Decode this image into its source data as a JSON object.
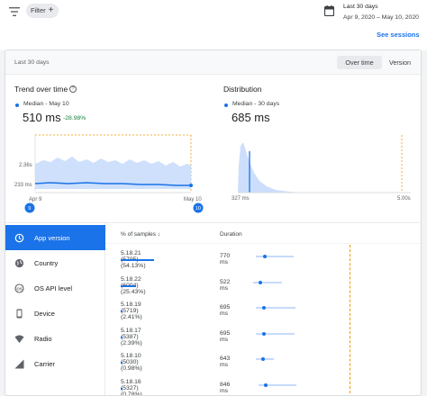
{
  "topbar": {
    "filter_label": "Filter",
    "filter_add": "+",
    "range_title": "Last 30 days",
    "range_dates": "Apr 9, 2020 – May 10, 2020",
    "see_sessions": "See sessions"
  },
  "card": {
    "period": "Last 30 days",
    "view_options": [
      "Over time",
      "Version"
    ],
    "selected_view": "Over time"
  },
  "trend": {
    "title": "Trend over time",
    "help": "?",
    "median_label": "Median - May 10",
    "median_value": "510 ms",
    "change": "-28.98%",
    "y_ticks": [
      "2.36s",
      "233 ms"
    ],
    "x_ticks": [
      "Apr 9",
      "May 10"
    ],
    "handle_start": "9",
    "handle_end": "10"
  },
  "distribution": {
    "title": "Distribution",
    "median_label": "Median - 30 days",
    "median_value": "685 ms",
    "x_ticks": [
      "327 ms",
      "5.00s"
    ]
  },
  "sidebar": {
    "items": [
      {
        "label": "App version",
        "icon": "history-icon",
        "active": true
      },
      {
        "label": "Country",
        "icon": "globe-icon",
        "active": false
      },
      {
        "label": "OS API level",
        "icon": "os-icon",
        "active": false
      },
      {
        "label": "Device",
        "icon": "phone-icon",
        "active": false
      },
      {
        "label": "Radio",
        "icon": "signal-icon",
        "active": false
      },
      {
        "label": "Carrier",
        "icon": "carrier-icon",
        "active": false
      }
    ]
  },
  "table": {
    "col_samples": "% of samples",
    "col_duration": "Duration",
    "rows": [
      {
        "version": "5.18.21 (5795) (54.13%)",
        "share": 54.13,
        "duration": "770 ms"
      },
      {
        "version": "5.18.22 (6004) (25.43%)",
        "share": 25.43,
        "duration": "522 ms"
      },
      {
        "version": "5.18.19 (5719) (2.41%)",
        "share": 2.41,
        "duration": "695 ms"
      },
      {
        "version": "5.18.17 (5387) (2.39%)",
        "share": 2.39,
        "duration": "695 ms"
      },
      {
        "version": "5.18.10 (5030) (0.98%)",
        "share": 0.98,
        "duration": "643 ms"
      },
      {
        "version": "5.18.16 (5327) (0.78%)",
        "share": 0.78,
        "duration": "846 ms"
      }
    ]
  },
  "colors": {
    "accent": "#1a73e8",
    "threshold": "#f29900",
    "positive": "#188038",
    "area": "#c6dafc"
  }
}
